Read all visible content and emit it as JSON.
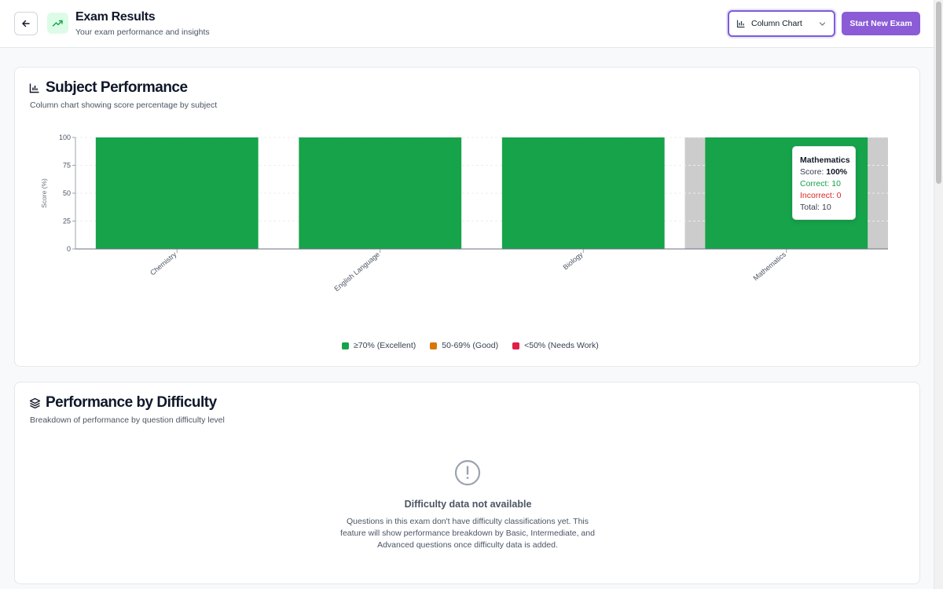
{
  "header": {
    "title": "Exam Results",
    "subtitle": "Your exam performance and insights",
    "chart_type_select": "Column Chart",
    "start_button": "Start New Exam"
  },
  "subject_card": {
    "title": "Subject Performance",
    "subtitle": "Column chart showing score percentage by subject"
  },
  "chart_data": {
    "type": "bar",
    "categories": [
      "Chemistry",
      "English Language",
      "Biology",
      "Mathematics"
    ],
    "values": [
      100,
      100,
      100,
      100
    ],
    "ylabel": "Score (%)",
    "xlabel": "",
    "ylim": [
      0,
      100
    ],
    "yticks": [
      "0",
      "25",
      "50",
      "75",
      "100"
    ],
    "bar_color": "#16a34a",
    "hover_color": "#cccccc",
    "highlighted_category": "Mathematics",
    "legend_position": "bottom"
  },
  "tooltip": {
    "title": "Mathematics",
    "score_label": "Score: ",
    "score_value": "100%",
    "correct": "Correct: 10",
    "incorrect": "Incorrect: 0",
    "total": "Total: 10"
  },
  "legend": [
    {
      "label": "≥70% (Excellent)",
      "color": "#16a34a"
    },
    {
      "label": "50-69% (Good)",
      "color": "#d97706"
    },
    {
      "label": "<50% (Needs Work)",
      "color": "#e11d48"
    }
  ],
  "difficulty_card": {
    "title": "Performance by Difficulty",
    "subtitle": "Breakdown of performance by question difficulty level",
    "empty_title": "Difficulty data not available",
    "empty_description": "Questions in this exam don't have difficulty classifications yet. This feature will show performance breakdown by Basic, Intermediate, and Advanced questions once difficulty data is added."
  },
  "colors": {
    "accent": "#8b5cd6",
    "success_bg": "#dcfce7",
    "success": "#16a34a"
  }
}
